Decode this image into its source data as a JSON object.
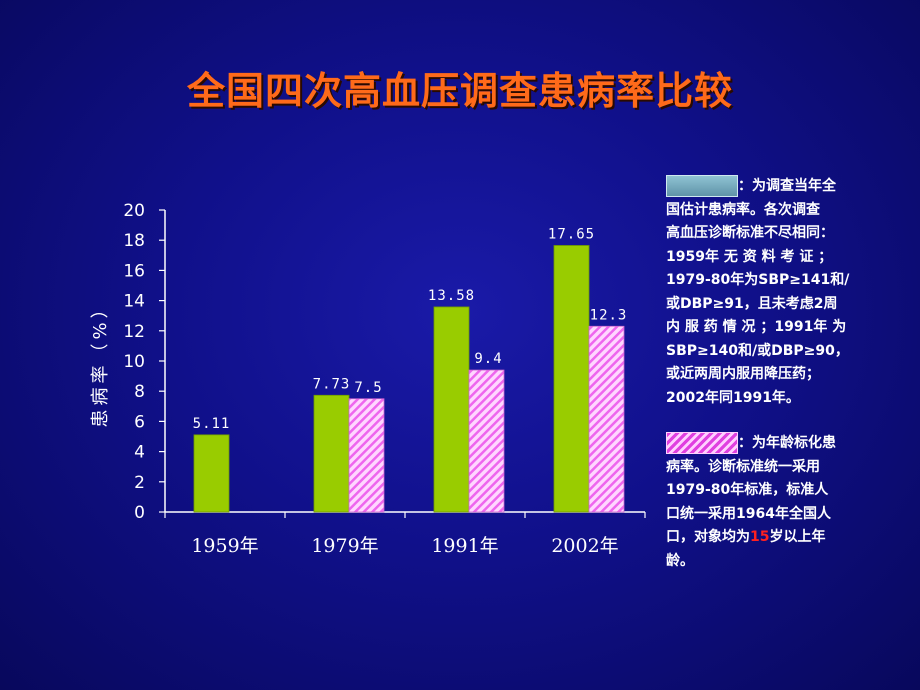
{
  "title": "全国四次高血压调查患病率比较",
  "chart_data": {
    "type": "bar",
    "categories": [
      "1959年",
      "1979年",
      "1991年",
      "2002年"
    ],
    "ylabel": "患病率（%）",
    "ylim": [
      0,
      20
    ],
    "yticks": [
      0,
      2,
      4,
      6,
      8,
      10,
      12,
      14,
      16,
      18,
      20
    ],
    "series": [
      {
        "values": [
          5.11,
          7.73,
          13.58,
          17.65
        ],
        "labels": [
          "5.11",
          "7.73",
          "13.58",
          "17.65"
        ],
        "color": "#99cc00"
      },
      {
        "values": [
          null,
          7.5,
          9.4,
          12.3
        ],
        "labels": [
          "",
          "7.5",
          "9.4",
          "12.3"
        ],
        "color": "#ff99ff"
      }
    ]
  },
  "legend": {
    "note1": {
      "lines": [
        "：为调查当年全",
        "国估计患病率。各次调查",
        "高血压诊断标准不尽相同：",
        "1959年 无 资 料 考 证 ；",
        "1979-80年为SBP≥141和/",
        "或DBP≥91，且未考虑2周",
        "内 服 药 情 况 ；1991年 为",
        "SBP≥140和/或DBP≥90，",
        "或近两周内服用降压药；",
        "2002年同1991年。"
      ]
    },
    "note2": {
      "lines": [
        "：为年龄标化患",
        "病率。诊断标准统一采用",
        "1979-80年标准，标准人",
        "口统一采用1964年全国人"
      ],
      "last_line_pre": "口，对象均为",
      "last_line_red": "15",
      "last_line_post": "岁以上年",
      "final_line": "龄。"
    }
  }
}
